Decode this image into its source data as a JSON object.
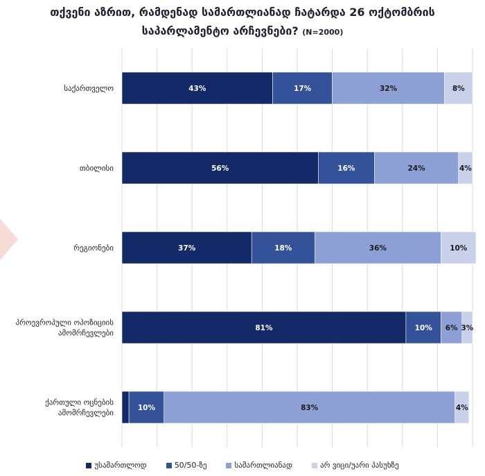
{
  "title_line1": "თქვენი აზრით, რამდენად სამართლიანად ჩატარდა 26 ოქტომბრის",
  "title_line2": "საპარლამენტო არჩევნები?",
  "title_n": "(N=2000)",
  "chart_data": {
    "type": "bar",
    "orientation": "horizontal",
    "stacked": true,
    "percent_stacked": true,
    "xlim": [
      0,
      100
    ],
    "grid": true,
    "legend_position": "bottom",
    "categories": [
      [
        "საქართველო"
      ],
      [
        "თბილისი"
      ],
      [
        "რეგიონები"
      ],
      [
        "პროევროპული ოპოზიციის",
        "ამომრჩევლები"
      ],
      [
        "ქართული ოცნების",
        "ამომრჩევლები"
      ]
    ],
    "series": [
      {
        "name": "უსამართლოდ",
        "color": "#142a68",
        "label_color": "#ffffff",
        "values": [
          43,
          56,
          37,
          81,
          2
        ]
      },
      {
        "name": "50/50-ზე",
        "color": "#34529a",
        "label_color": "#ffffff",
        "values": [
          17,
          16,
          18,
          10,
          10
        ]
      },
      {
        "name": "სამართლიანად",
        "color": "#8da0d6",
        "label_color": "#1a1a1a",
        "values": [
          32,
          24,
          36,
          6,
          83
        ]
      },
      {
        "name": "არ ვიცი/უარი პასუხზე",
        "color": "#c9d0ea",
        "label_color": "#1a1a1a",
        "values": [
          8,
          4,
          10,
          3,
          4
        ]
      }
    ]
  }
}
